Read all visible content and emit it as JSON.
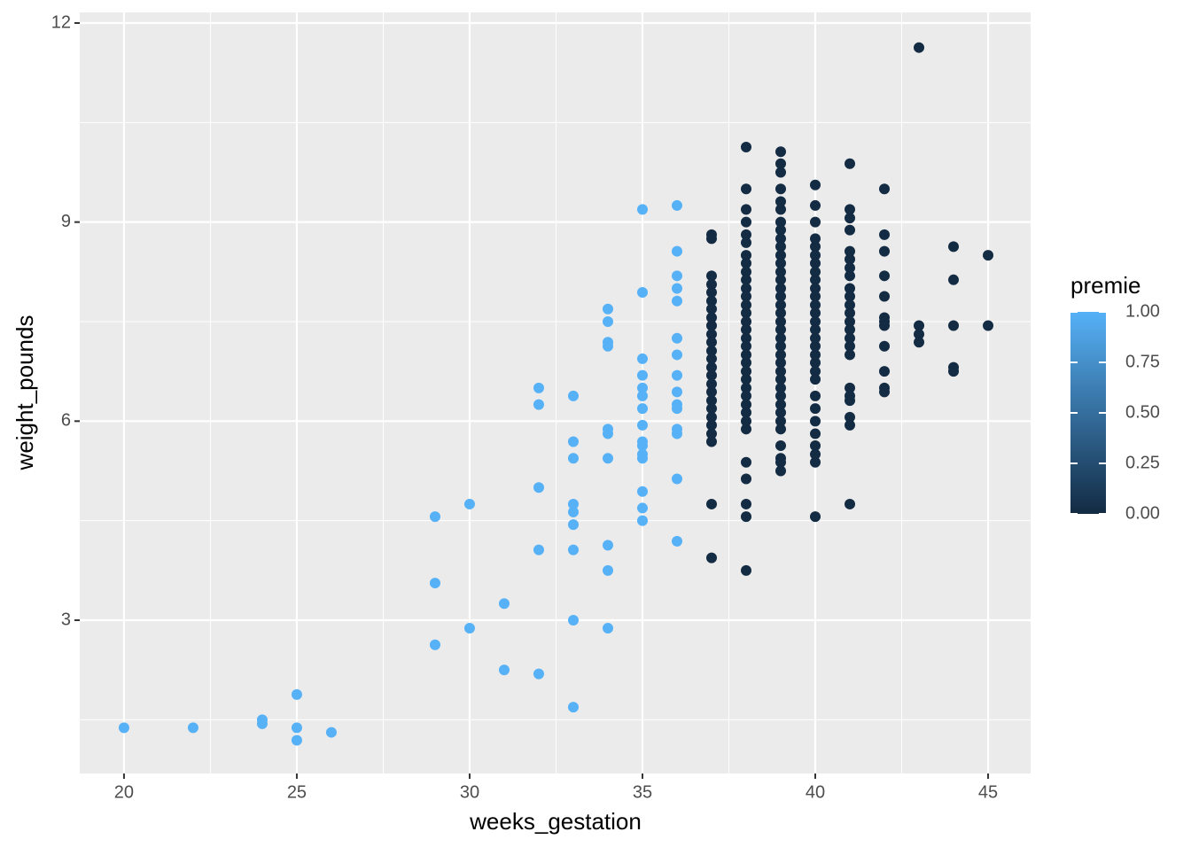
{
  "chart_data": {
    "type": "scatter",
    "x_label": "weeks_gestation",
    "y_label": "weight_pounds",
    "xlim": [
      18.72,
      46.23
    ],
    "ylim": [
      0.69,
      12.16
    ],
    "xticks": [
      20,
      25,
      30,
      35,
      40,
      45
    ],
    "yticks": [
      3,
      6,
      9,
      12
    ],
    "minor_xticks": [
      22.5,
      27.5,
      32.5,
      37.5,
      42.5
    ],
    "minor_yticks": [
      1.5,
      4.5,
      7.5,
      10.5
    ],
    "grid": true,
    "background": "#ebebeb",
    "colorbar": {
      "title": "premie",
      "low": "#132b43",
      "high": "#56b1f7",
      "lim": [
        0,
        1
      ],
      "ticks": [
        {
          "value": 0,
          "label": "0.00"
        },
        {
          "value": 0.25,
          "label": "0.25"
        },
        {
          "value": 0.5,
          "label": "0.50"
        },
        {
          "value": 0.75,
          "label": "0.75"
        },
        {
          "value": 1,
          "label": "1.00"
        }
      ]
    },
    "points_by_x": [
      {
        "x": 20,
        "premie": 1,
        "values": [
          1.38
        ]
      },
      {
        "x": 22,
        "premie": 1,
        "values": [
          1.38
        ]
      },
      {
        "x": 24,
        "premie": 1,
        "values": [
          1.5,
          1.44
        ]
      },
      {
        "x": 25,
        "premie": 1,
        "values": [
          1.88,
          1.38,
          1.19
        ]
      },
      {
        "x": 26,
        "premie": 1,
        "values": [
          1.31
        ]
      },
      {
        "x": 29,
        "premie": 1,
        "values": [
          4.56,
          3.56,
          2.63
        ]
      },
      {
        "x": 30,
        "premie": 1,
        "values": [
          4.75,
          2.88
        ]
      },
      {
        "x": 31,
        "premie": 1,
        "values": [
          3.25,
          2.25
        ]
      },
      {
        "x": 32,
        "premie": 1,
        "values": [
          6.5,
          6.25,
          5.0,
          4.06,
          2.19
        ]
      },
      {
        "x": 33,
        "premie": 1,
        "values": [
          6.38,
          5.69,
          5.44,
          4.75,
          4.63,
          4.44,
          4.06,
          3.0,
          1.69
        ]
      },
      {
        "x": 34,
        "premie": 1,
        "values": [
          7.69,
          7.5,
          7.19,
          7.13,
          5.88,
          5.81,
          5.44,
          4.13,
          3.75,
          2.88
        ]
      },
      {
        "x": 35,
        "premie": 1,
        "values": [
          9.19,
          7.94,
          6.94,
          6.69,
          6.5,
          6.38,
          6.19,
          5.94,
          5.69,
          5.63,
          5.5,
          5.44,
          4.94,
          4.69,
          4.5
        ]
      },
      {
        "x": 36,
        "premie": 1,
        "values": [
          9.25,
          8.56,
          8.19,
          8.0,
          7.81,
          7.25,
          7.0,
          6.69,
          6.44,
          6.25,
          6.19,
          5.88,
          5.81,
          5.13,
          4.19
        ]
      },
      {
        "x": 37,
        "premie": 0,
        "values": [
          8.81,
          8.75,
          8.19,
          8.06,
          7.94,
          7.81,
          7.69,
          7.56,
          7.44,
          7.31,
          7.19,
          7.06,
          6.94,
          6.81,
          6.69,
          6.56,
          6.44,
          6.31,
          6.19,
          6.06,
          5.94,
          5.81,
          5.69,
          4.75,
          3.94
        ]
      },
      {
        "x": 38,
        "premie": 0,
        "values": [
          10.13,
          9.5,
          9.19,
          9.0,
          8.81,
          8.69,
          8.5,
          8.38,
          8.25,
          8.13,
          8.0,
          7.88,
          7.75,
          7.63,
          7.5,
          7.38,
          7.25,
          7.13,
          7.0,
          6.88,
          6.75,
          6.63,
          6.5,
          6.38,
          6.25,
          6.13,
          6.0,
          5.88,
          5.38,
          5.13,
          4.75,
          4.56,
          3.75
        ]
      },
      {
        "x": 39,
        "premie": 0,
        "values": [
          10.06,
          9.88,
          9.75,
          9.5,
          9.31,
          9.19,
          9.0,
          8.88,
          8.75,
          8.63,
          8.5,
          8.38,
          8.25,
          8.13,
          8.0,
          7.88,
          7.75,
          7.63,
          7.5,
          7.38,
          7.25,
          7.13,
          7.0,
          6.88,
          6.75,
          6.63,
          6.5,
          6.38,
          6.25,
          6.13,
          6.0,
          5.88,
          5.63,
          5.44,
          5.38,
          5.25
        ]
      },
      {
        "x": 40,
        "premie": 0,
        "values": [
          9.56,
          9.25,
          9.0,
          8.75,
          8.63,
          8.5,
          8.38,
          8.25,
          8.13,
          8.0,
          7.88,
          7.75,
          7.63,
          7.5,
          7.38,
          7.25,
          7.13,
          7.0,
          6.88,
          6.75,
          6.63,
          6.38,
          6.19,
          6.0,
          5.81,
          5.63,
          5.5,
          5.38,
          4.56
        ]
      },
      {
        "x": 41,
        "premie": 0,
        "values": [
          9.88,
          9.19,
          9.06,
          8.88,
          8.56,
          8.44,
          8.31,
          8.19,
          8.0,
          7.88,
          7.75,
          7.63,
          7.5,
          7.38,
          7.25,
          7.13,
          7.0,
          6.5,
          6.38,
          6.31,
          6.06,
          5.94,
          4.75
        ]
      },
      {
        "x": 42,
        "premie": 0,
        "values": [
          9.5,
          8.81,
          8.56,
          8.19,
          7.88,
          7.56,
          7.5,
          7.44,
          7.13,
          6.75,
          6.5,
          6.44
        ]
      },
      {
        "x": 43,
        "premie": 0,
        "values": [
          11.63,
          7.44,
          7.31,
          7.19
        ]
      },
      {
        "x": 44,
        "premie": 0,
        "values": [
          8.63,
          8.13,
          7.44,
          6.81,
          6.75
        ]
      },
      {
        "x": 45,
        "premie": 0,
        "values": [
          8.5,
          7.44
        ]
      }
    ]
  }
}
